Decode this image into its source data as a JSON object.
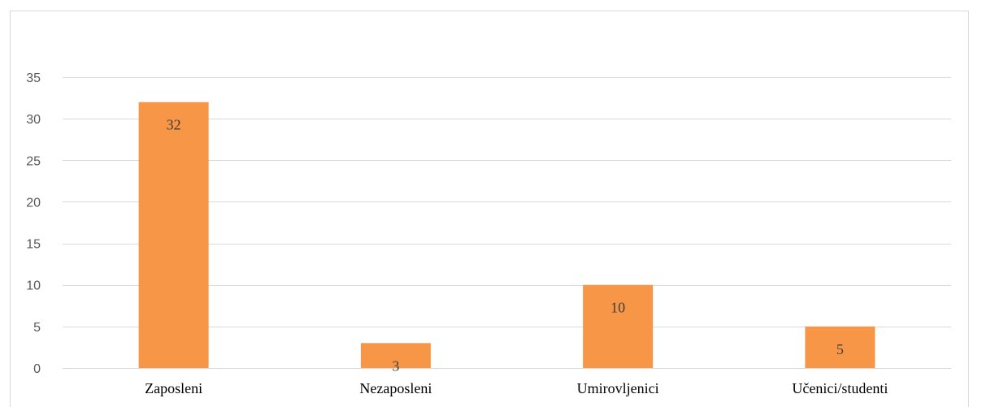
{
  "chart_data": {
    "type": "bar",
    "title": "",
    "xlabel": "",
    "ylabel": "",
    "categories": [
      "Zaposleni",
      "Nezaposleni",
      "Umirovljenici",
      "Učenici/studenti"
    ],
    "values": [
      32,
      3,
      10,
      5
    ],
    "data_labels": [
      "32",
      "3",
      "10",
      "5"
    ],
    "ylim": [
      0,
      35
    ],
    "yticks": [
      0,
      5,
      10,
      15,
      20,
      25,
      30,
      35
    ],
    "grid": true,
    "legend": "none",
    "colors": {
      "bar": "#F79646",
      "grid": "#d9d9d9",
      "axis_text": "#595959",
      "category_text": "#000000",
      "data_label_text": "#404040"
    }
  }
}
